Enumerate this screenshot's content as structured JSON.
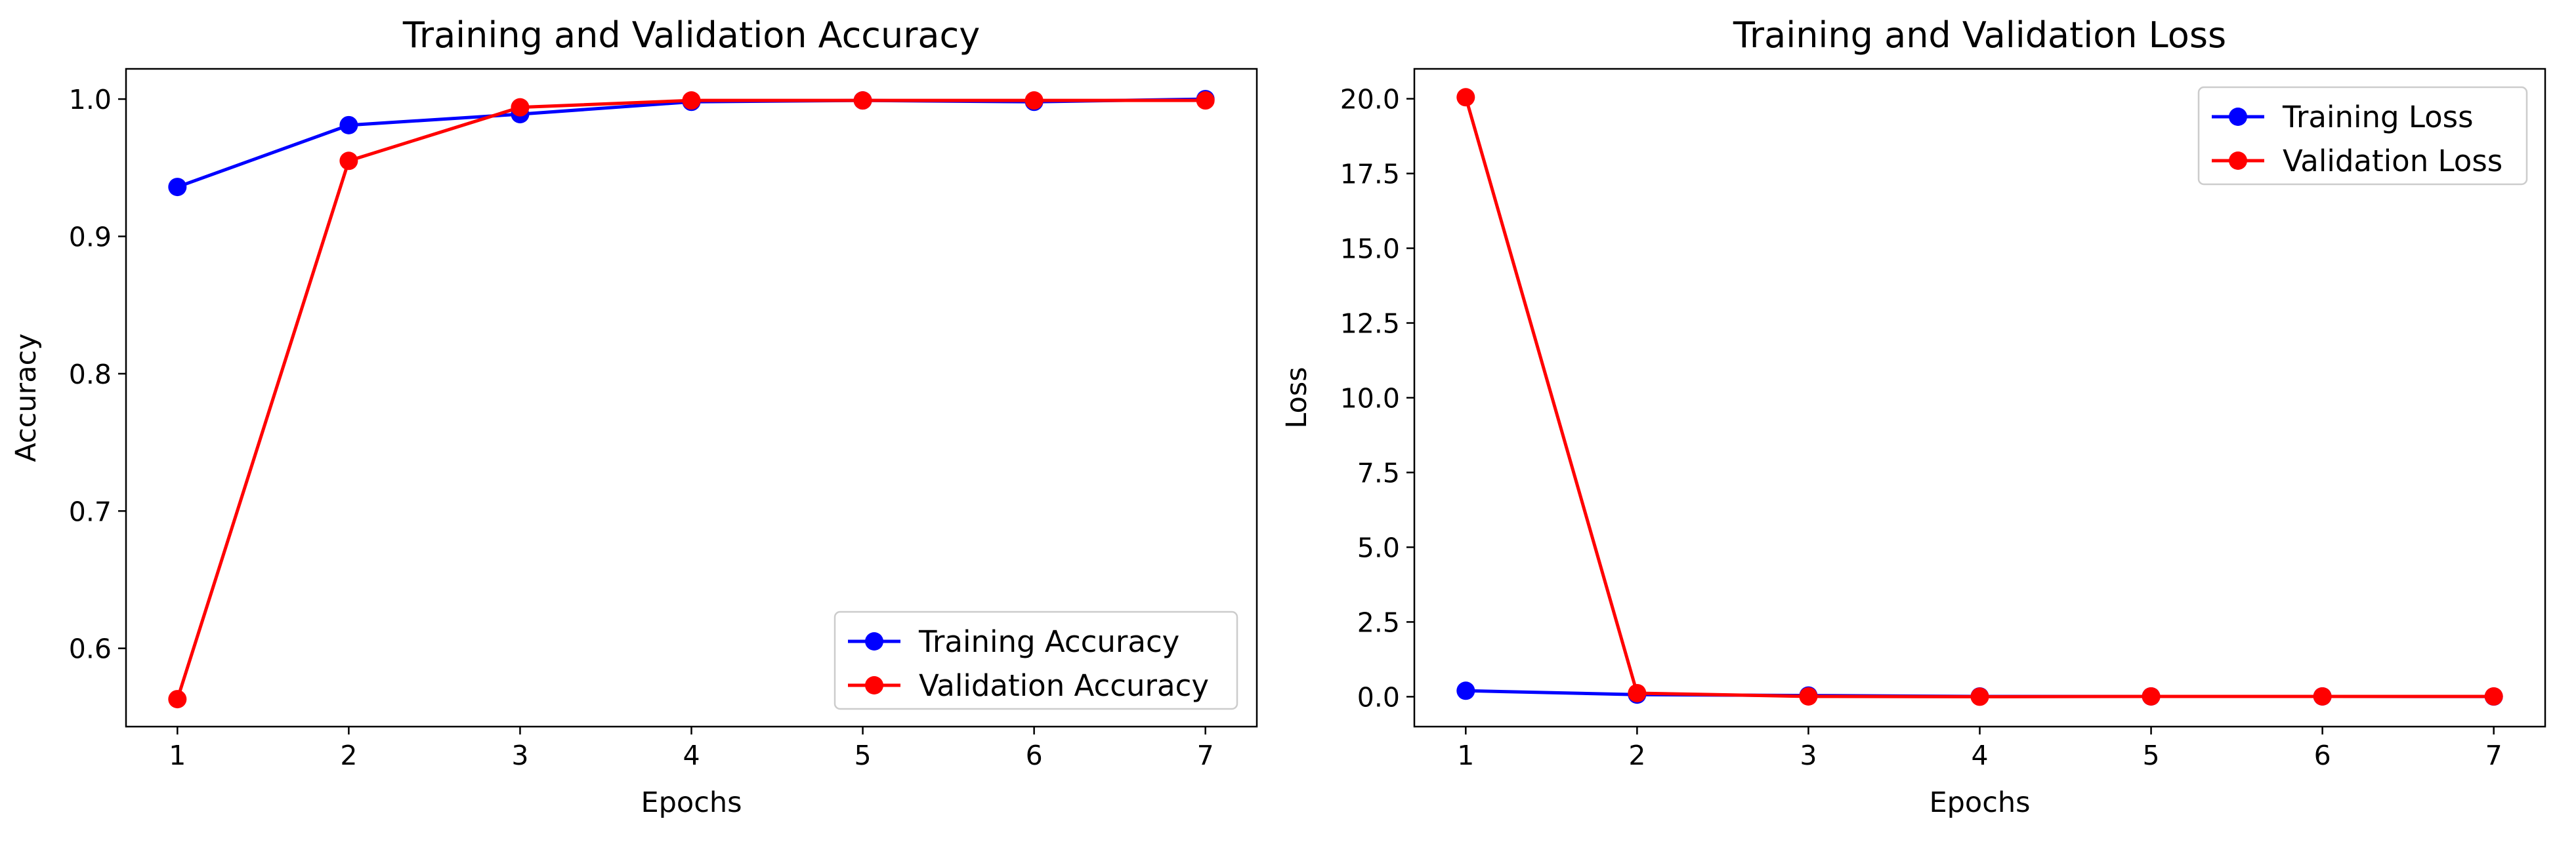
{
  "chart_data": [
    {
      "type": "line",
      "title": "Training and Validation Accuracy",
      "xlabel": "Epochs",
      "ylabel": "Accuracy",
      "x": [
        1,
        2,
        3,
        4,
        5,
        6,
        7
      ],
      "xlim": [
        0.7,
        7.3
      ],
      "ylim": [
        0.543,
        1.022
      ],
      "yticks": [
        0.6,
        0.7,
        0.8,
        0.9,
        1.0
      ],
      "ytick_labels": [
        "0.6",
        "0.7",
        "0.8",
        "0.9",
        "1.0"
      ],
      "xtick_labels": [
        "1",
        "2",
        "3",
        "4",
        "5",
        "6",
        "7"
      ],
      "grid": false,
      "legend": "lower-right",
      "series": [
        {
          "name": "Training Accuracy",
          "color": "#0000ff",
          "marker": "circle",
          "values": [
            0.936,
            0.981,
            0.989,
            0.998,
            0.999,
            0.998,
            1.0
          ]
        },
        {
          "name": "Validation Accuracy",
          "color": "#ff0000",
          "marker": "circle",
          "values": [
            0.563,
            0.955,
            0.994,
            0.999,
            0.999,
            0.999,
            0.999
          ]
        }
      ]
    },
    {
      "type": "line",
      "title": "Training and Validation Loss",
      "xlabel": "Epochs",
      "ylabel": "Loss",
      "x": [
        1,
        2,
        3,
        4,
        5,
        6,
        7
      ],
      "xlim": [
        0.7,
        7.3
      ],
      "ylim": [
        -1.0,
        21.0
      ],
      "yticks": [
        0,
        2.5,
        5,
        7.5,
        10,
        12.5,
        15,
        17.5,
        20
      ],
      "ytick_labels": [
        "0.0",
        "2.5",
        "5.0",
        "7.5",
        "10.0",
        "12.5",
        "15.0",
        "17.5",
        "20.0"
      ],
      "xtick_labels": [
        "1",
        "2",
        "3",
        "4",
        "5",
        "6",
        "7"
      ],
      "grid": false,
      "legend": "top-right",
      "series": [
        {
          "name": "Training Loss",
          "color": "#0000ff",
          "marker": "circle",
          "values": [
            0.2,
            0.07,
            0.04,
            0.01,
            0.01,
            0.01,
            0.005
          ]
        },
        {
          "name": "Validation Loss",
          "color": "#ff0000",
          "marker": "circle",
          "values": [
            20.05,
            0.12,
            0.01,
            0.0,
            0.01,
            0.01,
            0.01
          ]
        }
      ]
    }
  ]
}
